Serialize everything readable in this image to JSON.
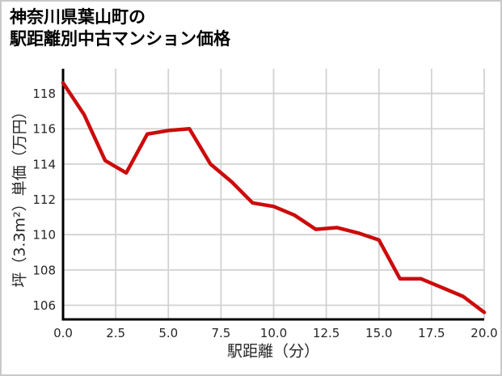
{
  "chart_data": {
    "type": "line",
    "title": "神奈川県葉山町の駅距離別中古マンション価格",
    "title_lines": [
      "神奈川県葉山町の",
      "駅距離別中古マンション価格"
    ],
    "xlabel": "駅距離（分）",
    "ylabel": "坪（3.3m²）単価（万円）",
    "x": [
      0,
      1,
      2,
      3,
      4,
      5,
      6,
      7,
      8,
      9,
      10,
      11,
      12,
      13,
      14,
      15,
      16,
      17,
      18,
      19,
      20
    ],
    "values": [
      118.6,
      116.8,
      114.2,
      113.5,
      115.7,
      115.9,
      116.0,
      114.0,
      113.0,
      111.8,
      111.6,
      111.1,
      110.3,
      110.4,
      110.1,
      109.7,
      107.5,
      107.5,
      107.0,
      106.5,
      105.6
    ],
    "xlim": [
      0,
      20
    ],
    "ylim": [
      105.2,
      119.4
    ],
    "xticks": [
      0,
      2.5,
      5,
      7.5,
      10,
      12.5,
      15,
      17.5,
      20
    ],
    "xtick_labels": [
      "0.0",
      "2.5",
      "5.0",
      "7.5",
      "10.0",
      "12.5",
      "15.0",
      "17.5",
      "20.0"
    ],
    "yticks": [
      106,
      108,
      110,
      112,
      114,
      116,
      118
    ],
    "ytick_labels": [
      "106",
      "108",
      "110",
      "112",
      "114",
      "116",
      "118"
    ],
    "grid": true,
    "legend": "none"
  },
  "colors": {
    "line": "#cc0b0b",
    "grid": "#d2d2d2",
    "spine": "#000000",
    "tick_text": "#262626",
    "frame_border": "#c9c9c9",
    "background": "#ffffff"
  }
}
